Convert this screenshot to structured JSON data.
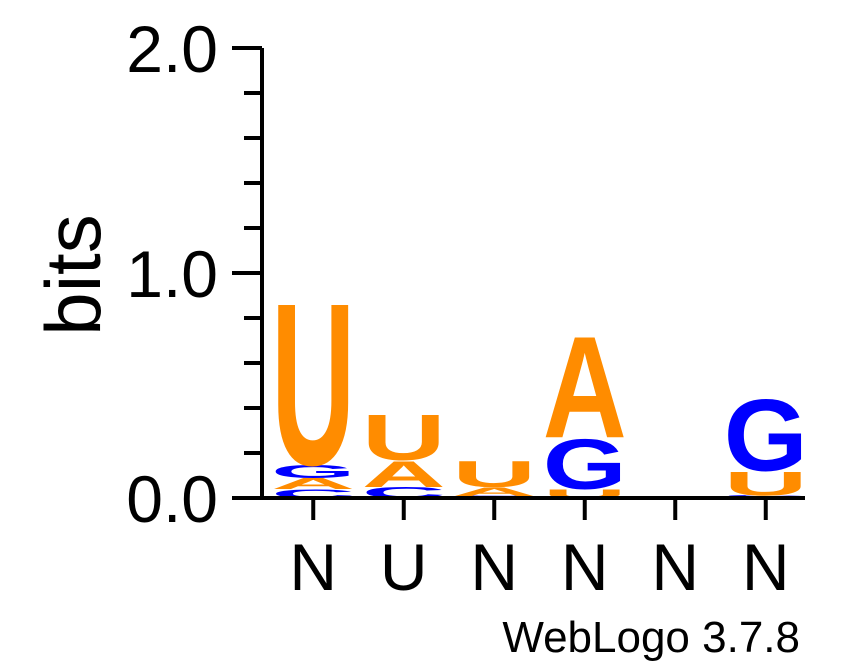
{
  "chart_data": {
    "type": "sequence-logo",
    "ylabel": "bits",
    "ylim": [
      0,
      2.0
    ],
    "y_tick_labels": [
      "0.0",
      "1.0",
      "2.0"
    ],
    "x_tick_labels": [
      "N",
      "U",
      "N",
      "N",
      "N",
      "N"
    ],
    "footer": "WebLogo 3.7.8",
    "colors": {
      "A": "#ff8c00",
      "U": "#ff8c00",
      "G": "#0000ff",
      "C": "#0000ff"
    },
    "positions": [
      {
        "consensus": "N",
        "stack": [
          {
            "letter": "C",
            "bits": 0.04
          },
          {
            "letter": "A",
            "bits": 0.05
          },
          {
            "letter": "G",
            "bits": 0.06
          },
          {
            "letter": "U",
            "bits": 0.75
          }
        ]
      },
      {
        "consensus": "U",
        "stack": [
          {
            "letter": "C",
            "bits": 0.05
          },
          {
            "letter": "A",
            "bits": 0.12
          },
          {
            "letter": "U",
            "bits": 0.21
          }
        ]
      },
      {
        "consensus": "N",
        "stack": [
          {
            "letter": "G",
            "bits": 0.005
          },
          {
            "letter": "C",
            "bits": 0.005
          },
          {
            "letter": "A",
            "bits": 0.04
          },
          {
            "letter": "U",
            "bits": 0.12
          }
        ]
      },
      {
        "consensus": "N",
        "stack": [
          {
            "letter": "U",
            "bits": 0.04
          },
          {
            "letter": "G",
            "bits": 0.23
          },
          {
            "letter": "A",
            "bits": 0.47
          }
        ]
      },
      {
        "consensus": "N",
        "stack": [
          {
            "letter": "G",
            "bits": 0.004
          },
          {
            "letter": "C",
            "bits": 0.004
          }
        ]
      },
      {
        "consensus": "N",
        "stack": [
          {
            "letter": "A",
            "bits": 0.006
          },
          {
            "letter": "C",
            "bits": 0.006
          },
          {
            "letter": "U",
            "bits": 0.11
          },
          {
            "letter": "G",
            "bits": 0.33
          }
        ]
      }
    ]
  }
}
